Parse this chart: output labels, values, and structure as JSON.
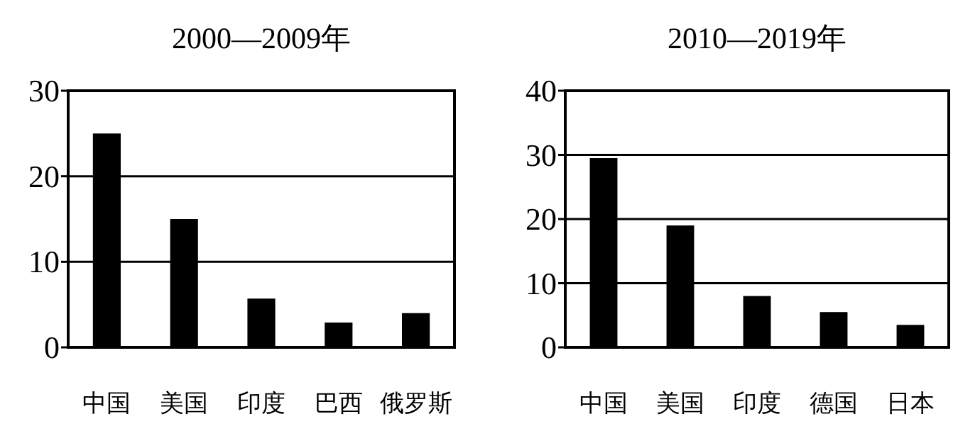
{
  "chart_data": [
    {
      "type": "bar",
      "title": "2000—2009年",
      "categories": [
        "中国",
        "美国",
        "印度",
        "巴西",
        "俄罗斯"
      ],
      "values": [
        25,
        15,
        5.7,
        2.9,
        4
      ],
      "color": "#000000",
      "ylim": [
        0,
        30
      ],
      "yticks": [
        0,
        10,
        20,
        30
      ],
      "grid": "y"
    },
    {
      "type": "bar",
      "title": "2010—2019年",
      "categories": [
        "中国",
        "美国",
        "印度",
        "德国",
        "日本"
      ],
      "values": [
        29.5,
        19,
        8,
        5.5,
        3.5
      ],
      "color": "#000000",
      "ylim": [
        0,
        40
      ],
      "yticks": [
        0,
        10,
        20,
        30,
        40
      ],
      "grid": "y"
    }
  ]
}
